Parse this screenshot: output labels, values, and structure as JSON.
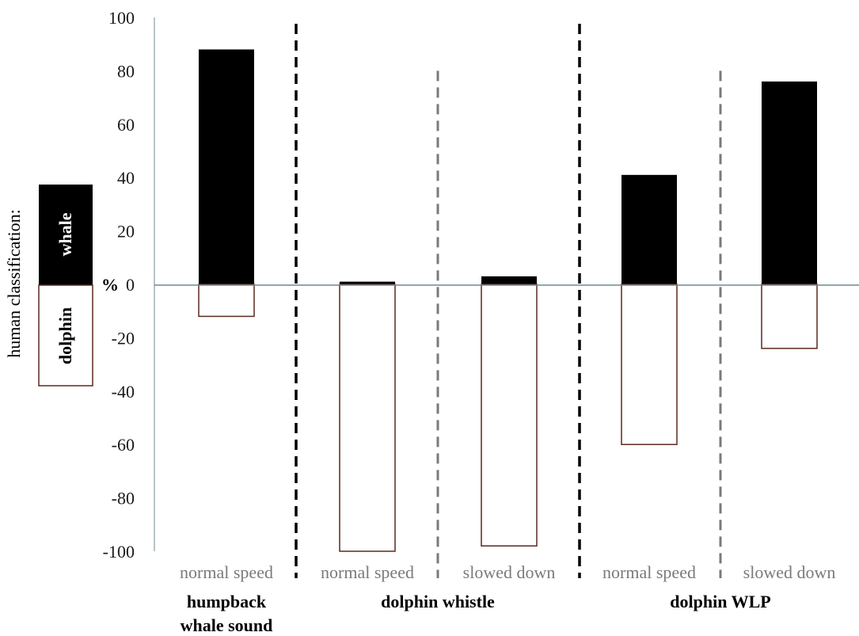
{
  "chart_data": {
    "type": "bar",
    "title": "",
    "ylabel": "human classification:",
    "unit_label": "%",
    "ylim": [
      -100,
      100
    ],
    "yticks": [
      "100",
      "80",
      "60",
      "40",
      "20",
      "0",
      "-20",
      "-40",
      "-60",
      "-80",
      "-100"
    ],
    "legend": {
      "whale": "whale",
      "dolphin": "dolphin"
    },
    "colors": {
      "whale": "#000000",
      "dolphin": "#ffffff",
      "dolphin_border": "#5a2a1e",
      "axis": "#6f8a91"
    },
    "categories": [
      "normal speed",
      "normal speed",
      "slowed down",
      "normal speed",
      "slowed down"
    ],
    "groups": [
      "humpback whale sound",
      "dolphin whistle",
      "dolphin WLP"
    ],
    "group_lines": [
      [
        "humpback",
        "whale sound"
      ],
      [
        "dolphin  whistle"
      ],
      [
        "dolphin  WLP"
      ]
    ],
    "series": [
      {
        "name": "whale",
        "values": [
          88,
          1,
          3,
          41,
          76
        ]
      },
      {
        "name": "dolphin",
        "values": [
          -12,
          -100,
          -98,
          -60,
          -24
        ]
      }
    ]
  }
}
